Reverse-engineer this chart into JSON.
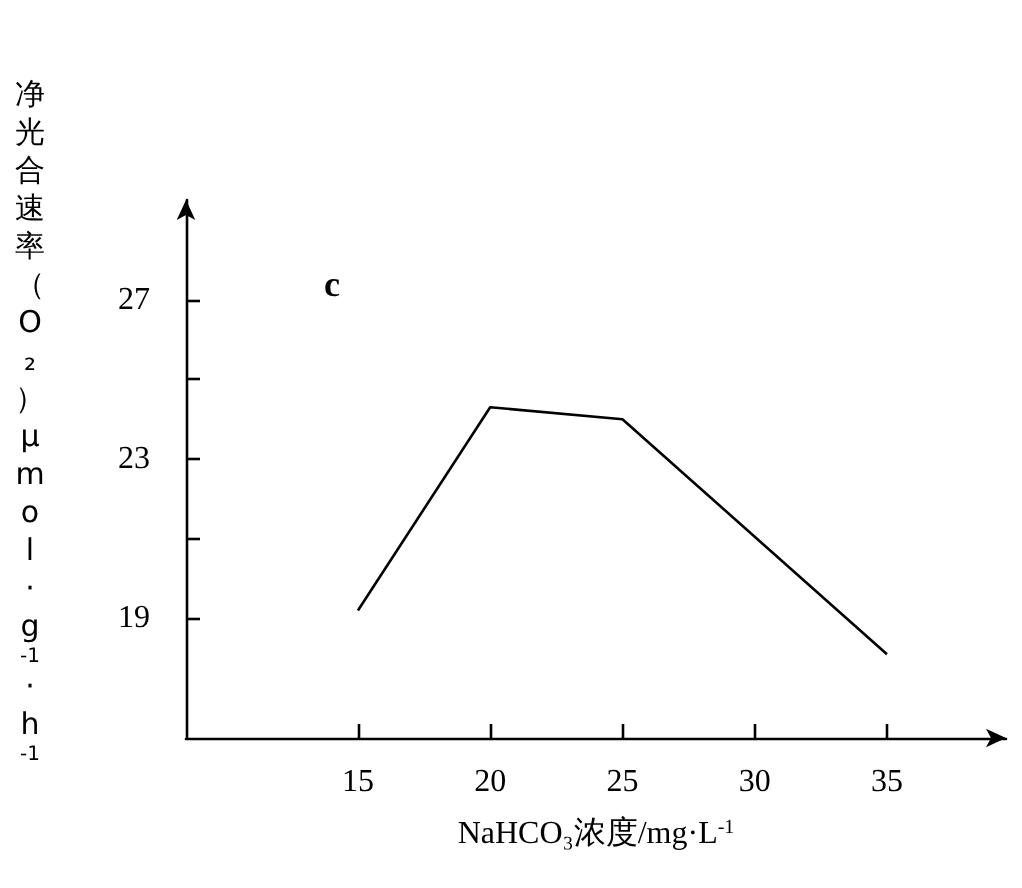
{
  "chart_data": {
    "type": "line",
    "xlabel": "NaHCO₃浓度/mg·L$^{-1}$",
    "ylabel": "净光合速率（O₂）μmol·g$^{-1}$·h$^{-1}$",
    "annotations": [
      "c"
    ],
    "x": [
      15,
      20,
      25,
      35
    ],
    "series": [
      {
        "color": "#000000",
        "values": [
          19.2,
          24.3,
          24.0,
          18.1
        ]
      }
    ],
    "xlim": [
      8.5,
      39.5
    ],
    "xticks": [
      15,
      20,
      25,
      30,
      35
    ],
    "ylim": [
      16,
      29.5
    ],
    "yticks": [
      19,
      {
        "value": 21,
        "label": null
      },
      23,
      {
        "value": 25,
        "label": null
      },
      27
    ],
    "grid": false,
    "marker": "none",
    "line_style": "solid"
  }
}
